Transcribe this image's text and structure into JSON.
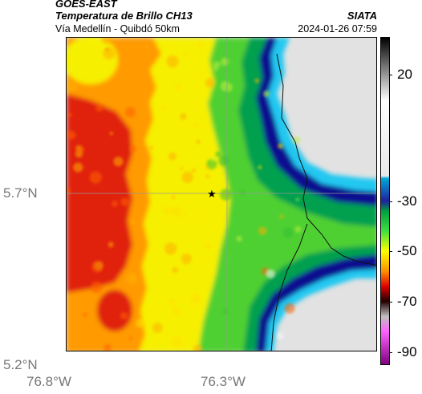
{
  "header": {
    "satellite": "GOES-EAST",
    "product": "Temperatura de Brillo CH13",
    "route": "Vía Medellín - Quibdó 50km",
    "org": "SIATA",
    "timestamp": "2024-01-26 07:59"
  },
  "axes": {
    "y_ticks": [
      "5.7°N",
      "5.2°N"
    ],
    "x_ticks": [
      "76.8°W",
      "76.3°W"
    ]
  },
  "colorbar": {
    "tick_labels": [
      "20",
      "-30",
      "-50",
      "-70",
      "-90"
    ],
    "tick_values": [
      20,
      -30,
      -50,
      -70,
      -90
    ],
    "range": [
      -95,
      35
    ],
    "stops": [
      {
        "value": 35,
        "color": "#000000"
      },
      {
        "value": 10,
        "color": "#ffffff"
      },
      {
        "value": -20,
        "color": "#e8e8e8"
      },
      {
        "value": -21,
        "color": "#00a8d8"
      },
      {
        "value": -30,
        "color": "#2020a0"
      },
      {
        "value": -34,
        "color": "#00a040"
      },
      {
        "value": -42,
        "color": "#40e040"
      },
      {
        "value": -50,
        "color": "#ffff00"
      },
      {
        "value": -58,
        "color": "#ff9000"
      },
      {
        "value": -64,
        "color": "#e00000"
      },
      {
        "value": -70,
        "color": "#200000"
      },
      {
        "value": -76,
        "color": "#c0c0c0"
      },
      {
        "value": -82,
        "color": "#ff60ff"
      },
      {
        "value": -95,
        "color": "#800080"
      }
    ]
  },
  "map": {
    "marker": "star-marker",
    "regions": [
      {
        "name": "red-core",
        "color": "#e02010"
      },
      {
        "name": "orange-band",
        "color": "#ff9a00"
      },
      {
        "name": "yellow-band",
        "color": "#f6f000"
      },
      {
        "name": "green-band",
        "color": "#50d030"
      },
      {
        "name": "dark-green-band",
        "color": "#00a050"
      },
      {
        "name": "blue-front",
        "color": "#101090"
      },
      {
        "name": "cyan-edge",
        "color": "#20c8f0"
      },
      {
        "name": "warm-surface",
        "color": "#e2e2e2"
      }
    ]
  }
}
